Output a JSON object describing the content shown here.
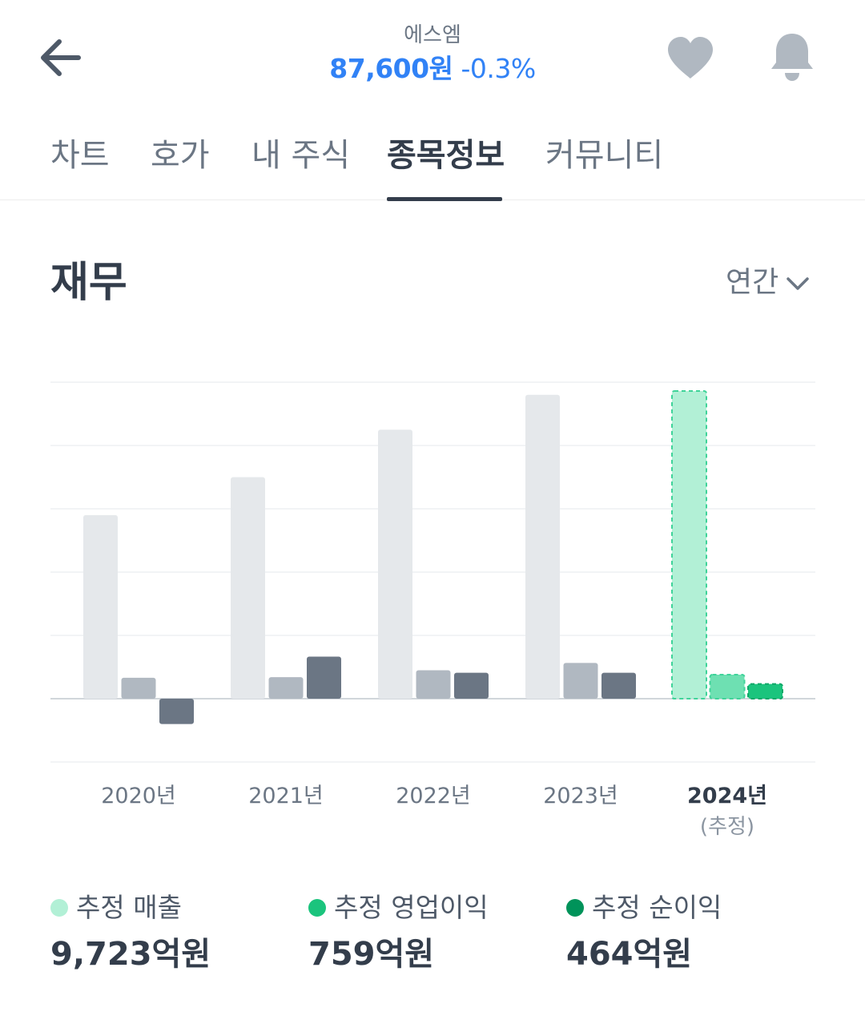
{
  "header": {
    "stock_name": "에스엠",
    "price": "87,600원",
    "change": "-0.3%"
  },
  "tabs": [
    {
      "label": "차트"
    },
    {
      "label": "호가"
    },
    {
      "label": "내 주식"
    },
    {
      "label": "종목정보"
    },
    {
      "label": "커뮤니티"
    }
  ],
  "active_tab": "종목정보",
  "section": {
    "title": "재무",
    "period": "연간"
  },
  "icons": {
    "back": "arrow-left-icon",
    "favorite": "heart-icon",
    "notification": "bell-icon",
    "dropdown": "chevron-down-icon"
  },
  "colors": {
    "price": "#3182f6",
    "revenue_actual": "#e5e8eb",
    "operating_actual": "#b0b8c1",
    "net_actual": "#6b7684",
    "revenue_estimate": "#b2f0d6",
    "operating_estimate": "#6ee0b2",
    "net_estimate": "#1bc47d"
  },
  "chart_data": {
    "type": "bar",
    "categories": [
      "2020년",
      "2021년",
      "2022년",
      "2023년",
      "2024년"
    ],
    "estimate_note": "(추정)",
    "estimate_index": 4,
    "series": [
      {
        "key": "revenue",
        "values": [
          5800,
          7000,
          8500,
          9600,
          9723
        ]
      },
      {
        "key": "operating",
        "values": [
          660,
          680,
          900,
          1130,
          759
        ]
      },
      {
        "key": "net",
        "values": [
          -800,
          1330,
          820,
          820,
          464
        ]
      }
    ],
    "ylim": [
      -2000,
      10000
    ],
    "grid": true
  },
  "legend": [
    {
      "label": "추정 매출",
      "value": "9,723억원",
      "color": "#b2f0d6"
    },
    {
      "label": "추정 영업이익",
      "value": "759억원",
      "color": "#1bc47d"
    },
    {
      "label": "추정 순이익",
      "value": "464억원",
      "color": "#00935a"
    }
  ]
}
